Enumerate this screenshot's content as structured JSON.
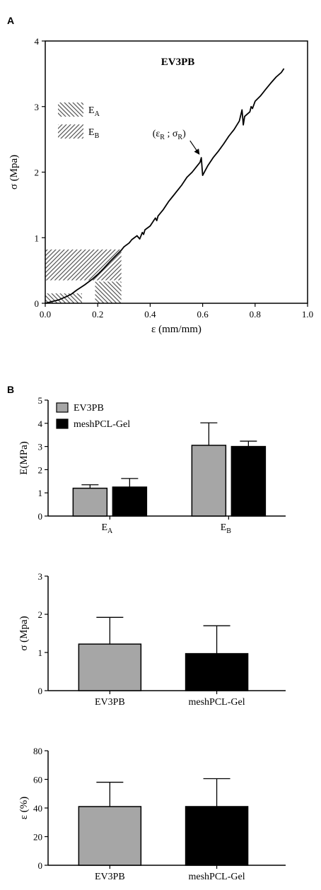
{
  "panels": {
    "a": "A",
    "b": "B"
  },
  "chart_data": [
    {
      "type": "line",
      "panel": "A",
      "title": "EV3PB",
      "xlabel": "ε (mm/mm)",
      "ylabel": "σ (Mpa)",
      "xlim": [
        0,
        1.0
      ],
      "ylim": [
        0,
        4
      ],
      "xticks": [
        "0.0",
        "0.2",
        "0.4",
        "0.6",
        "0.8",
        "1.0"
      ],
      "yticks": [
        "0",
        "1",
        "2",
        "3",
        "4"
      ],
      "legend": [
        {
          "sym": "E",
          "sub": "A",
          "hatch": "backslash"
        },
        {
          "sym": "E",
          "sub": "B",
          "hatch": "slash"
        }
      ],
      "annotation": {
        "text_prefix": "(ε",
        "sub1": "R",
        "mid": " ; σ",
        "sub2": "R",
        "suffix": ")",
        "x": 0.595,
        "y": 2.22
      },
      "series": [
        {
          "x": [
            0,
            0.02,
            0.05,
            0.08,
            0.1,
            0.12,
            0.15,
            0.18,
            0.2,
            0.22,
            0.25,
            0.27,
            0.29,
            0.3,
            0.32,
            0.33,
            0.35,
            0.36,
            0.37,
            0.375,
            0.38,
            0.4,
            0.41,
            0.42,
            0.425,
            0.43,
            0.45,
            0.47,
            0.49,
            0.5,
            0.52,
            0.54,
            0.56,
            0.58,
            0.59,
            0.595,
            0.6,
            0.62,
            0.64,
            0.66,
            0.68,
            0.7,
            0.72,
            0.74,
            0.75,
            0.755,
            0.76,
            0.78,
            0.785,
            0.79,
            0.8,
            0.82,
            0.84,
            0.86,
            0.88,
            0.9,
            0.91
          ],
          "y": [
            0,
            0.02,
            0.05,
            0.1,
            0.14,
            0.2,
            0.28,
            0.37,
            0.44,
            0.52,
            0.65,
            0.73,
            0.81,
            0.86,
            0.92,
            0.97,
            1.03,
            0.98,
            1.08,
            1.05,
            1.12,
            1.18,
            1.24,
            1.3,
            1.26,
            1.33,
            1.43,
            1.55,
            1.65,
            1.7,
            1.8,
            1.92,
            2.0,
            2.1,
            2.15,
            2.22,
            1.95,
            2.1,
            2.22,
            2.32,
            2.43,
            2.55,
            2.65,
            2.78,
            2.95,
            2.72,
            2.85,
            2.92,
            3.0,
            2.97,
            3.08,
            3.16,
            3.26,
            3.36,
            3.45,
            3.52,
            3.58
          ]
        }
      ],
      "e_regions": {
        "A": [
          [
            0.0,
            0.14,
            0.0,
            0.15
          ],
          [
            0.19,
            0.29,
            0.0,
            0.33
          ]
        ],
        "B": [
          [
            0.0,
            0.29,
            0.35,
            0.82
          ]
        ]
      }
    },
    {
      "type": "bar",
      "panel": "B",
      "ylabel": "E(MPa)",
      "ylim": [
        0,
        5
      ],
      "yticks": [
        "0",
        "1",
        "2",
        "3",
        "4",
        "5"
      ],
      "categories": [
        {
          "sym": "E",
          "sub": "A"
        },
        {
          "sym": "E",
          "sub": "B"
        }
      ],
      "series": [
        {
          "name": "EV3PB",
          "color": "#a6a6a6",
          "values": [
            1.2,
            3.05
          ],
          "errors": [
            0.15,
            0.97
          ]
        },
        {
          "name": "meshPCL-Gel",
          "color": "#000000",
          "values": [
            1.25,
            3.0
          ],
          "errors": [
            0.37,
            0.23
          ]
        }
      ]
    },
    {
      "type": "bar",
      "panel": "B",
      "ylabel": "σ (Mpa)",
      "ylim": [
        0,
        3
      ],
      "yticks": [
        "0",
        "1",
        "2",
        "3"
      ],
      "categories": [
        "EV3PB",
        "meshPCL-Gel"
      ],
      "colors": [
        "#a6a6a6",
        "#000000"
      ],
      "values": [
        1.22,
        0.97
      ],
      "errors": [
        0.7,
        0.73
      ]
    },
    {
      "type": "bar",
      "panel": "B",
      "ylabel": "ε (%)",
      "ylim": [
        0,
        80
      ],
      "yticks": [
        "0",
        "20",
        "40",
        "60",
        "80"
      ],
      "categories": [
        "EV3PB",
        "meshPCL-Gel"
      ],
      "colors": [
        "#a6a6a6",
        "#000000"
      ],
      "values": [
        41,
        41
      ],
      "errors": [
        17,
        19.5
      ]
    }
  ]
}
